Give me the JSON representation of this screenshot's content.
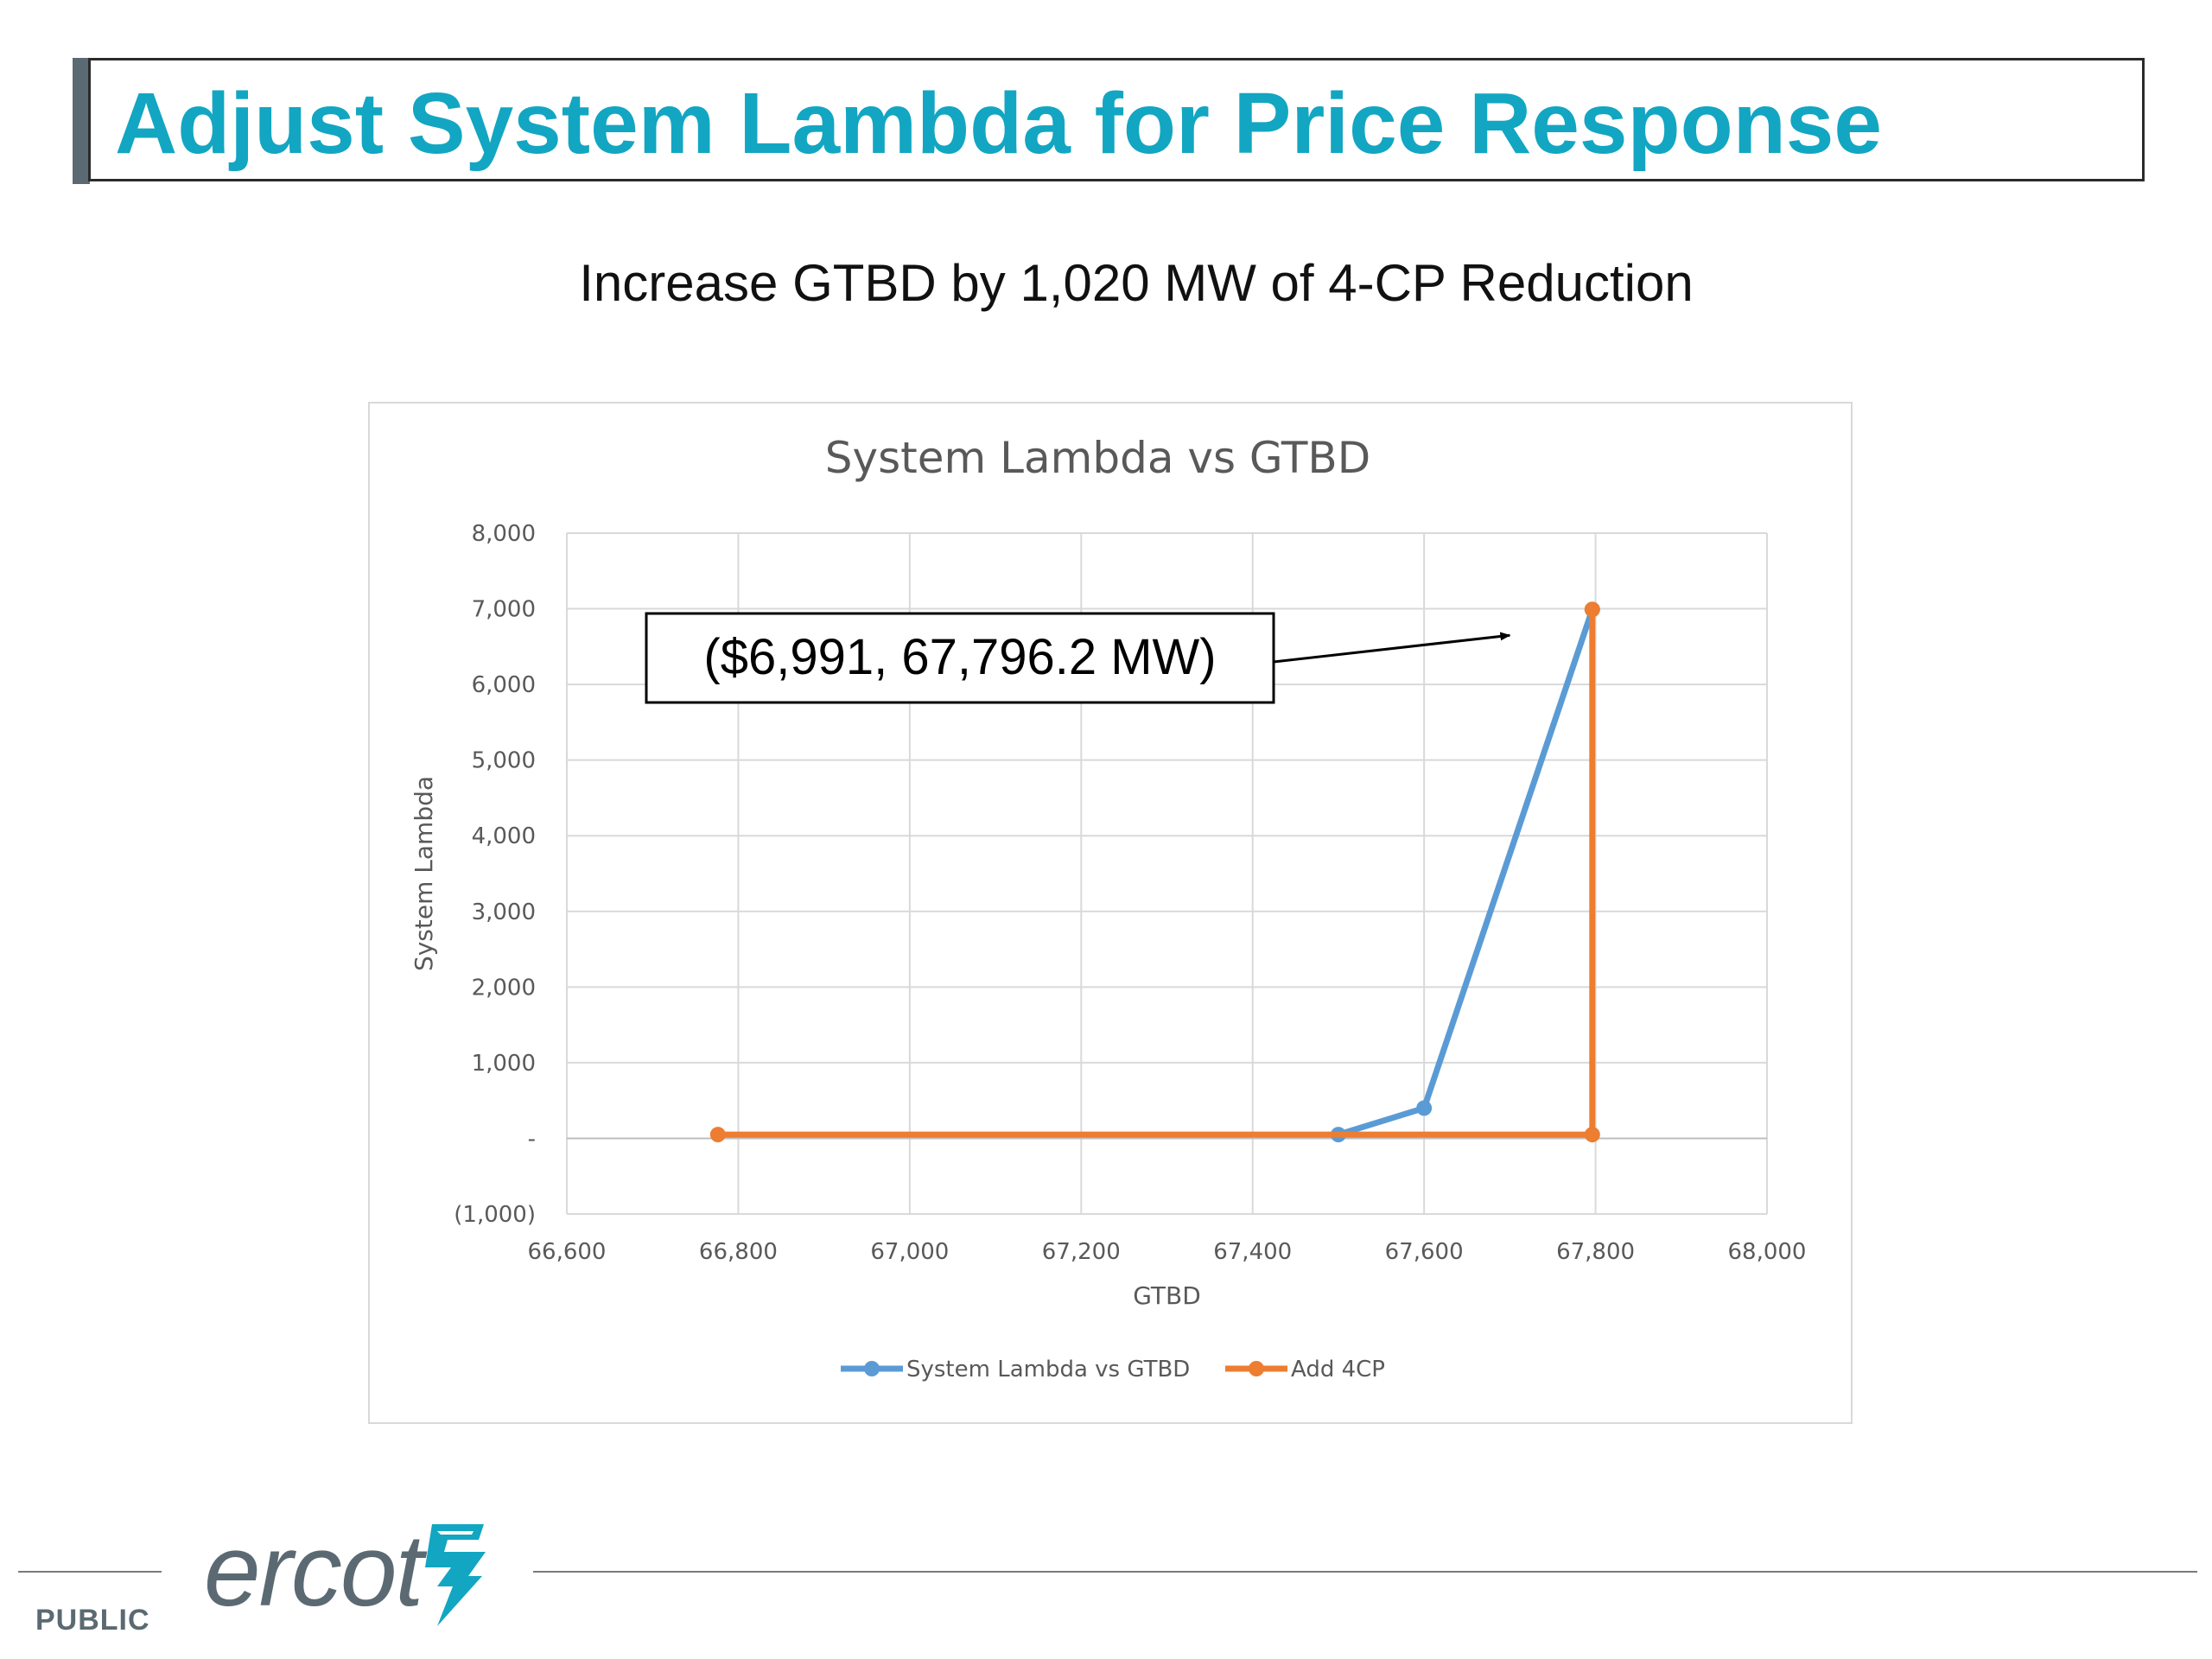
{
  "slide": {
    "title": "Adjust System Lambda for Price Response",
    "subtitle": "Increase GTBD by 1,020 MW of 4-CP Reduction",
    "footer_label": "PUBLIC",
    "logo_text": "ercot"
  },
  "colors": {
    "title": "#12a6c2",
    "series_blue": "#5b9bd5",
    "series_orange": "#ed7d31",
    "grid": "#d9d9d9",
    "axis_text": "#595959"
  },
  "chart_data": {
    "type": "line",
    "title": "System Lambda vs GTBD",
    "xlabel": "GTBD",
    "ylabel": "System Lambda",
    "xlim": [
      66600,
      68000
    ],
    "ylim": [
      -1000,
      8000
    ],
    "x_ticks": [
      66600,
      66800,
      67000,
      67200,
      67400,
      67600,
      67800,
      68000
    ],
    "x_tick_labels": [
      "66,600",
      "66,800",
      "67,000",
      "67,200",
      "67,400",
      "67,600",
      "67,800",
      "68,000"
    ],
    "y_ticks": [
      -1000,
      0,
      1000,
      2000,
      3000,
      4000,
      5000,
      6000,
      7000,
      8000
    ],
    "y_tick_labels": [
      "(1,000)",
      "-",
      "1,000",
      "2,000",
      "3,000",
      "4,000",
      "5,000",
      "6,000",
      "7,000",
      "8,000"
    ],
    "grid": true,
    "legend_position": "bottom",
    "series": [
      {
        "name": "System Lambda vs GTBD",
        "color": "#5b9bd5",
        "points": [
          [
            67500,
            50
          ],
          [
            67600,
            400
          ],
          [
            67796.2,
            6991
          ]
        ]
      },
      {
        "name": "Add 4CP",
        "color": "#ed7d31",
        "points": [
          [
            66776.2,
            50
          ],
          [
            67796.2,
            50
          ],
          [
            67796.2,
            6991
          ]
        ]
      }
    ],
    "annotation": {
      "text": "($6,991, 67,796.2 MW)",
      "target": [
        67700,
        6650
      ]
    }
  }
}
